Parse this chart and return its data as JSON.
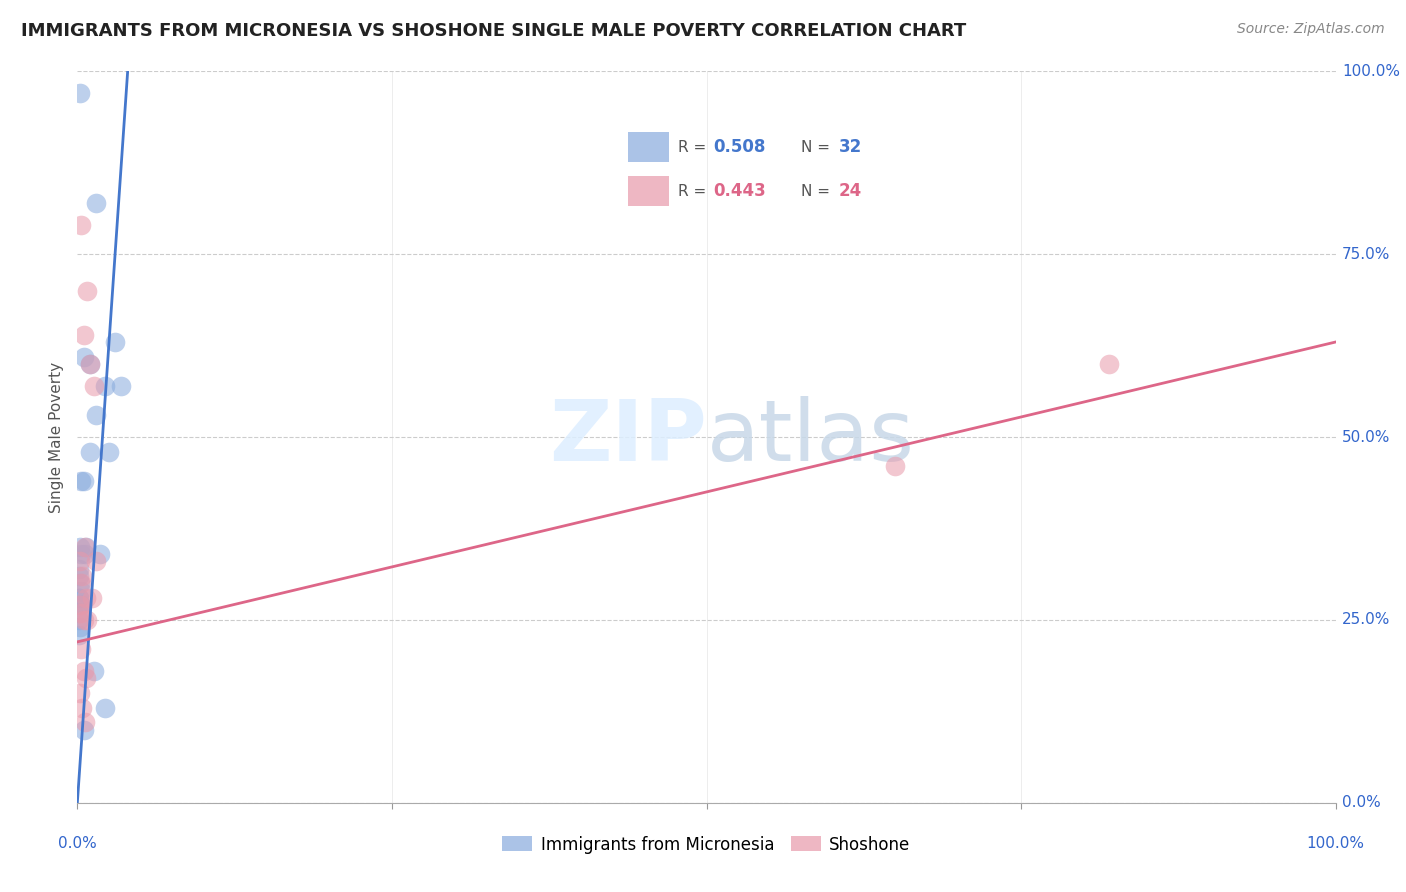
{
  "title": "IMMIGRANTS FROM MICRONESIA VS SHOSHONE SINGLE MALE POVERTY CORRELATION CHART",
  "source": "Source: ZipAtlas.com",
  "ylabel": "Single Male Poverty",
  "blue_scatter": [
    [
      0.2,
      97
    ],
    [
      1.5,
      82
    ],
    [
      0.5,
      61
    ],
    [
      1.0,
      60
    ],
    [
      2.2,
      57
    ],
    [
      3.5,
      57
    ],
    [
      1.5,
      53
    ],
    [
      2.5,
      48
    ],
    [
      1.0,
      48
    ],
    [
      0.3,
      44
    ],
    [
      0.5,
      44
    ],
    [
      3.0,
      63
    ],
    [
      0.2,
      35
    ],
    [
      0.7,
      35
    ],
    [
      0.3,
      34
    ],
    [
      0.6,
      34
    ],
    [
      1.8,
      34
    ],
    [
      0.1,
      32
    ],
    [
      0.15,
      31
    ],
    [
      0.2,
      30
    ],
    [
      0.3,
      29
    ],
    [
      0.1,
      28
    ],
    [
      0.15,
      28
    ],
    [
      0.2,
      27
    ],
    [
      0.3,
      27
    ],
    [
      0.1,
      26
    ],
    [
      0.15,
      25
    ],
    [
      0.2,
      24
    ],
    [
      0.1,
      23
    ],
    [
      1.3,
      18
    ],
    [
      2.2,
      13
    ],
    [
      0.5,
      10
    ]
  ],
  "pink_scatter": [
    [
      0.3,
      79
    ],
    [
      0.8,
      70
    ],
    [
      0.5,
      64
    ],
    [
      1.0,
      60
    ],
    [
      1.3,
      57
    ],
    [
      0.6,
      35
    ],
    [
      1.5,
      33
    ],
    [
      0.2,
      33
    ],
    [
      0.4,
      31
    ],
    [
      0.3,
      30
    ],
    [
      0.7,
      28
    ],
    [
      1.2,
      28
    ],
    [
      0.2,
      27
    ],
    [
      0.3,
      26
    ],
    [
      0.5,
      25
    ],
    [
      0.8,
      25
    ],
    [
      0.3,
      21
    ],
    [
      0.5,
      18
    ],
    [
      0.7,
      17
    ],
    [
      0.2,
      15
    ],
    [
      0.4,
      13
    ],
    [
      0.6,
      11
    ],
    [
      82,
      60
    ],
    [
      65,
      46
    ]
  ],
  "blue_color": "#88aadd",
  "pink_color": "#e899aa",
  "blue_line_color": "#4477cc",
  "pink_line_color": "#dd6688",
  "watermark_color": "#ddeeff",
  "figsize": [
    14.06,
    8.92
  ],
  "dpi": 100,
  "xlim": [
    0,
    100
  ],
  "ylim": [
    0,
    100
  ],
  "ytick_vals": [
    0,
    25,
    50,
    75,
    100
  ],
  "xtick_vals": [
    0,
    25,
    50,
    75,
    100
  ],
  "legend_r_blue": "0.508",
  "legend_n_blue": "32",
  "legend_r_pink": "0.443",
  "legend_n_pink": "24"
}
